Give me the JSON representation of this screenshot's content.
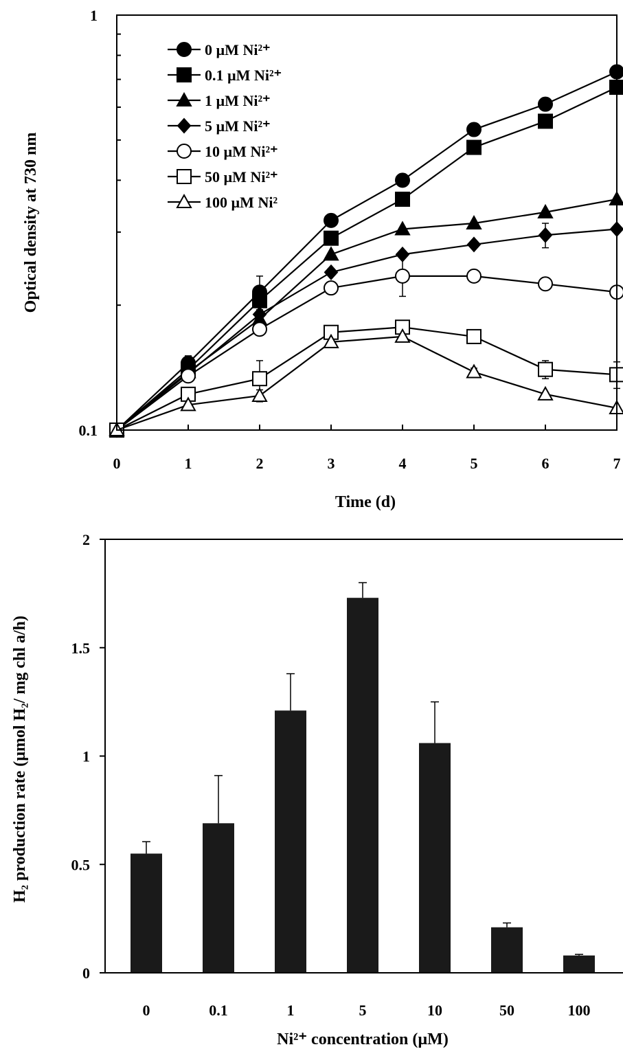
{
  "chart_data": [
    {
      "type": "line",
      "xlabel": "Time (d)",
      "ylabel": "Optical density at 730 nm",
      "yscale": "log",
      "xlim": [
        0,
        7
      ],
      "ylim": [
        0.1,
        1
      ],
      "x": [
        0,
        1,
        2,
        3,
        4,
        5,
        6,
        7
      ],
      "x_tick_labels": [
        "0",
        "1",
        "2",
        "3",
        "4",
        "5",
        "6",
        "7"
      ],
      "y_tick_labels": [
        "0.1",
        "1"
      ],
      "legend_position": "top-left",
      "series": [
        {
          "name": "0 µM Ni²⁺",
          "marker": "circle-filled",
          "values": [
            0.1,
            0.145,
            0.215,
            0.32,
            0.4,
            0.53,
            0.61,
            0.73
          ],
          "errors": [
            0,
            0.006,
            0.02,
            0,
            0,
            0,
            0,
            0
          ]
        },
        {
          "name": "0.1 µM Ni²⁺",
          "marker": "square-filled",
          "values": [
            0.1,
            0.14,
            0.205,
            0.29,
            0.36,
            0.48,
            0.555,
            0.67
          ],
          "errors": [
            0,
            0,
            0,
            0,
            0,
            0,
            0,
            0
          ]
        },
        {
          "name": "1 µM Ni²⁺",
          "marker": "triangle-filled",
          "values": [
            0.1,
            0.138,
            0.185,
            0.265,
            0.305,
            0.315,
            0.335,
            0.36
          ],
          "errors": [
            0,
            0,
            0,
            0,
            0,
            0,
            0,
            0
          ]
        },
        {
          "name": "5 µM Ni²⁺",
          "marker": "diamond-filled",
          "values": [
            0.1,
            0.137,
            0.19,
            0.24,
            0.265,
            0.28,
            0.295,
            0.305
          ],
          "errors": [
            0,
            0,
            0,
            0,
            0,
            0,
            0.02,
            0
          ]
        },
        {
          "name": "10 µM Ni²⁺",
          "marker": "circle-open",
          "values": [
            0.1,
            0.135,
            0.175,
            0.22,
            0.235,
            0.235,
            0.225,
            0.215
          ],
          "errors": [
            0,
            0,
            0,
            0,
            0.025,
            0,
            0,
            0
          ]
        },
        {
          "name": "50 µM Ni²⁺",
          "marker": "square-open",
          "values": [
            0.1,
            0.122,
            0.133,
            0.172,
            0.177,
            0.168,
            0.14,
            0.136
          ],
          "errors": [
            0,
            0,
            0.014,
            0,
            0,
            0,
            0.007,
            0.01
          ]
        },
        {
          "name": "100 µM Ni²",
          "marker": "triangle-open",
          "values": [
            0.1,
            0.115,
            0.121,
            0.163,
            0.168,
            0.138,
            0.122,
            0.113
          ],
          "errors": [
            0,
            0,
            0.004,
            0,
            0,
            0.003,
            0,
            0
          ]
        }
      ]
    },
    {
      "type": "bar",
      "xlabel": "Ni²⁺ concentration (µM)",
      "ylabel": "H₂ production rate (µmol H₂/ mg chl a/h)",
      "categories": [
        "0",
        "0.1",
        "1",
        "5",
        "10",
        "50",
        "100"
      ],
      "values": [
        0.55,
        0.69,
        1.21,
        1.73,
        1.06,
        0.21,
        0.08
      ],
      "errors": [
        0.055,
        0.22,
        0.17,
        0.07,
        0.19,
        0.02,
        0.005
      ],
      "ylim": [
        0,
        2
      ],
      "y_tick_labels": [
        "0",
        "0.5",
        "1",
        "1.5",
        "2"
      ],
      "bar_color": "#1a1a1a"
    }
  ]
}
